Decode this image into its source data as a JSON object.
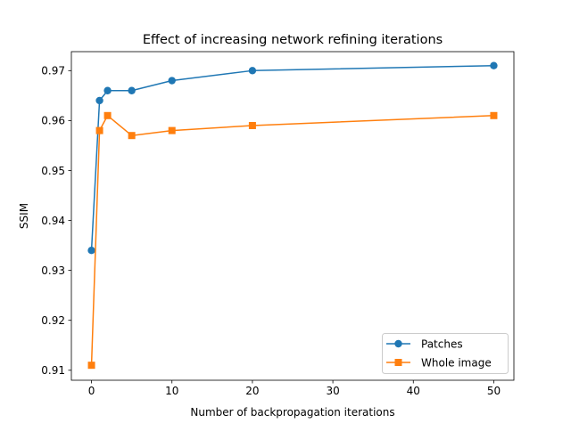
{
  "chart_data": {
    "type": "line",
    "title": "Effect of increasing network refining iterations",
    "xlabel": "Number of backpropagation iterations",
    "ylabel": "SSIM",
    "xlim": [
      -2.5,
      52.5
    ],
    "ylim": [
      0.908,
      0.9738
    ],
    "xticks": [
      0,
      10,
      20,
      30,
      40,
      50
    ],
    "xtick_labels": [
      "0",
      "10",
      "20",
      "30",
      "40",
      "50"
    ],
    "yticks": [
      0.91,
      0.92,
      0.93,
      0.94,
      0.95,
      0.96,
      0.97
    ],
    "ytick_labels": [
      "0.91",
      "0.92",
      "0.93",
      "0.94",
      "0.95",
      "0.96",
      "0.97"
    ],
    "grid": false,
    "legend_position": "lower-right",
    "x": [
      0,
      1,
      2,
      5,
      10,
      20,
      50
    ],
    "series": [
      {
        "name": "Patches",
        "color": "#1f77b4",
        "marker": "circle",
        "values": [
          0.934,
          0.964,
          0.966,
          0.966,
          0.968,
          0.97,
          0.971
        ]
      },
      {
        "name": "Whole image",
        "color": "#ff7f0e",
        "marker": "square",
        "values": [
          0.911,
          0.958,
          0.961,
          0.957,
          0.958,
          0.959,
          0.961
        ]
      }
    ]
  }
}
